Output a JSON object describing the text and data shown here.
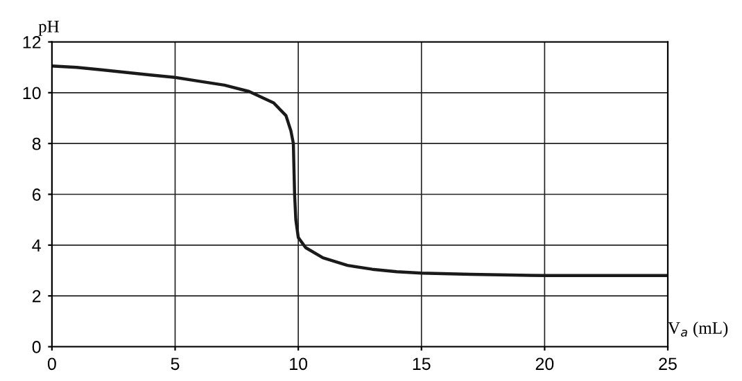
{
  "chart_data": {
    "type": "line",
    "xlabel": "V$_{a}$ (mL)",
    "ylabel": "pH",
    "series": [
      {
        "color": "#1a1a1a",
        "x": [
          0,
          1,
          2,
          3,
          4,
          5,
          6,
          7,
          8,
          9,
          9.5,
          9.7,
          9.8,
          9.85,
          9.9,
          10,
          10.3,
          11,
          12,
          13,
          14,
          15,
          17,
          20,
          25
        ],
        "values": [
          11.05,
          11.0,
          10.9,
          10.8,
          10.7,
          10.6,
          10.45,
          10.3,
          10.05,
          9.6,
          9.1,
          8.5,
          8.0,
          6.0,
          5.0,
          4.3,
          3.9,
          3.5,
          3.2,
          3.05,
          2.95,
          2.9,
          2.85,
          2.8,
          2.8
        ]
      }
    ],
    "xlim": [
      0,
      25
    ],
    "ylim": [
      0,
      12
    ],
    "xticks": [
      0,
      5,
      10,
      15,
      20,
      25
    ],
    "yticks": [
      0,
      2,
      4,
      6,
      8,
      10,
      12
    ],
    "grid": true,
    "marker": "none",
    "line_style": "solid"
  }
}
